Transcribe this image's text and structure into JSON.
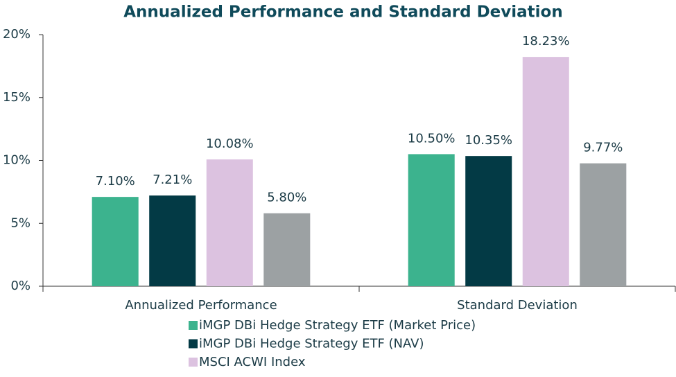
{
  "chart_data": {
    "type": "bar",
    "title": "Annualized Performance and Standard Deviation",
    "categories": [
      "Annualized Performance",
      "Standard Deviation"
    ],
    "series": [
      {
        "name": "iMGP DBi Hedge Strategy ETF (Market Price)",
        "color": "#3cb38e",
        "values": [
          7.1,
          10.5
        ],
        "value_labels": [
          "7.10%",
          "10.50%"
        ]
      },
      {
        "name": "iMGP DBi Hedge Strategy ETF (NAV)",
        "color": "#033a45",
        "values": [
          7.21,
          10.35
        ],
        "value_labels": [
          "7.21%",
          "10.35%"
        ]
      },
      {
        "name": "MSCI ACWI Index",
        "color": "#dcc2e0",
        "values": [
          10.08,
          18.23
        ],
        "value_labels": [
          "10.08%",
          "18.23%"
        ]
      },
      {
        "color": "#9ca1a3",
        "values": [
          5.8,
          9.77
        ],
        "value_labels": [
          "5.80%",
          "9.77%"
        ]
      }
    ],
    "ylim": [
      0,
      20
    ],
    "yticks": [
      {
        "value": 0,
        "label": "0%"
      },
      {
        "value": 5,
        "label": "5%"
      },
      {
        "value": 10,
        "label": "10%"
      },
      {
        "value": 15,
        "label": "15%"
      },
      {
        "value": 20,
        "label": "20%"
      }
    ]
  }
}
